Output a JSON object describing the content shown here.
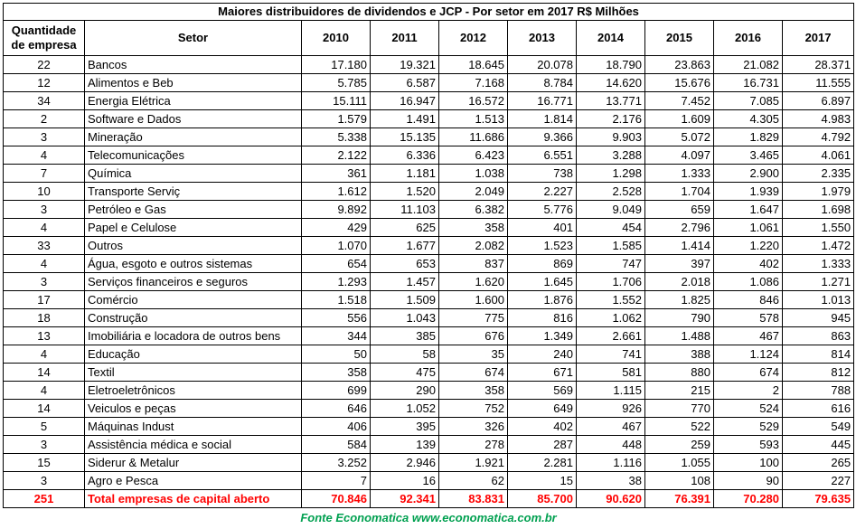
{
  "title": "Maiores distribuidores de dividendos e JCP - Por setor em 2017 R$ Milhões",
  "headers": {
    "qty": "Quantidade de empresa",
    "sector": "Setor",
    "years": [
      "2010",
      "2011",
      "2012",
      "2013",
      "2014",
      "2015",
      "2016",
      "2017"
    ]
  },
  "rows": [
    {
      "qty": "22",
      "sector": "Bancos",
      "values": [
        "17.180",
        "19.321",
        "18.645",
        "20.078",
        "18.790",
        "23.863",
        "21.082",
        "28.371"
      ]
    },
    {
      "qty": "12",
      "sector": "Alimentos e Beb",
      "values": [
        "5.785",
        "6.587",
        "7.168",
        "8.784",
        "14.620",
        "15.676",
        "16.731",
        "11.555"
      ]
    },
    {
      "qty": "34",
      "sector": "Energia Elétrica",
      "values": [
        "15.111",
        "16.947",
        "16.572",
        "16.771",
        "13.771",
        "7.452",
        "7.085",
        "6.897"
      ]
    },
    {
      "qty": "2",
      "sector": "Software e Dados",
      "values": [
        "1.579",
        "1.491",
        "1.513",
        "1.814",
        "2.176",
        "1.609",
        "4.305",
        "4.983"
      ]
    },
    {
      "qty": "3",
      "sector": "Mineração",
      "values": [
        "5.338",
        "15.135",
        "11.686",
        "9.366",
        "9.903",
        "5.072",
        "1.829",
        "4.792"
      ]
    },
    {
      "qty": "4",
      "sector": "Telecomunicações",
      "values": [
        "2.122",
        "6.336",
        "6.423",
        "6.551",
        "3.288",
        "4.097",
        "3.465",
        "4.061"
      ]
    },
    {
      "qty": "7",
      "sector": "Química",
      "values": [
        "361",
        "1.181",
        "1.038",
        "738",
        "1.298",
        "1.333",
        "2.900",
        "2.335"
      ]
    },
    {
      "qty": "10",
      "sector": "Transporte Serviç",
      "values": [
        "1.612",
        "1.520",
        "2.049",
        "2.227",
        "2.528",
        "1.704",
        "1.939",
        "1.979"
      ]
    },
    {
      "qty": "3",
      "sector": "Petróleo e Gas",
      "values": [
        "9.892",
        "11.103",
        "6.382",
        "5.776",
        "9.049",
        "659",
        "1.647",
        "1.698"
      ]
    },
    {
      "qty": "4",
      "sector": "Papel e Celulose",
      "values": [
        "429",
        "625",
        "358",
        "401",
        "454",
        "2.796",
        "1.061",
        "1.550"
      ]
    },
    {
      "qty": "33",
      "sector": "Outros",
      "values": [
        "1.070",
        "1.677",
        "2.082",
        "1.523",
        "1.585",
        "1.414",
        "1.220",
        "1.472"
      ]
    },
    {
      "qty": "4",
      "sector": "Água, esgoto e outros sistemas",
      "values": [
        "654",
        "653",
        "837",
        "869",
        "747",
        "397",
        "402",
        "1.333"
      ]
    },
    {
      "qty": "3",
      "sector": "Serviços financeiros e seguros",
      "values": [
        "1.293",
        "1.457",
        "1.620",
        "1.645",
        "1.706",
        "2.018",
        "1.086",
        "1.271"
      ]
    },
    {
      "qty": "17",
      "sector": "Comércio",
      "values": [
        "1.518",
        "1.509",
        "1.600",
        "1.876",
        "1.552",
        "1.825",
        "846",
        "1.013"
      ]
    },
    {
      "qty": "18",
      "sector": "Construção",
      "values": [
        "556",
        "1.043",
        "775",
        "816",
        "1.062",
        "790",
        "578",
        "945"
      ]
    },
    {
      "qty": "13",
      "sector": "Imobiliária e locadora de outros bens",
      "values": [
        "344",
        "385",
        "676",
        "1.349",
        "2.661",
        "1.488",
        "467",
        "863"
      ]
    },
    {
      "qty": "4",
      "sector": "Educação",
      "values": [
        "50",
        "58",
        "35",
        "240",
        "741",
        "388",
        "1.124",
        "814"
      ]
    },
    {
      "qty": "14",
      "sector": "Textil",
      "values": [
        "358",
        "475",
        "674",
        "671",
        "581",
        "880",
        "674",
        "812"
      ]
    },
    {
      "qty": "4",
      "sector": "Eletroeletrônicos",
      "values": [
        "699",
        "290",
        "358",
        "569",
        "1.115",
        "215",
        "2",
        "788"
      ]
    },
    {
      "qty": "14",
      "sector": "Veiculos e peças",
      "values": [
        "646",
        "1.052",
        "752",
        "649",
        "926",
        "770",
        "524",
        "616"
      ]
    },
    {
      "qty": "5",
      "sector": "Máquinas Indust",
      "values": [
        "406",
        "395",
        "326",
        "402",
        "467",
        "522",
        "529",
        "549"
      ]
    },
    {
      "qty": "3",
      "sector": "Assistência médica e social",
      "values": [
        "584",
        "139",
        "278",
        "287",
        "448",
        "259",
        "593",
        "445"
      ]
    },
    {
      "qty": "15",
      "sector": "Siderur & Metalur",
      "values": [
        "3.252",
        "2.946",
        "1.921",
        "2.281",
        "1.116",
        "1.055",
        "100",
        "265"
      ]
    },
    {
      "qty": "3",
      "sector": "Agro e Pesca",
      "values": [
        "7",
        "16",
        "62",
        "15",
        "38",
        "108",
        "90",
        "227"
      ]
    }
  ],
  "total": {
    "qty": "251",
    "sector": "Total empresas de capital aberto",
    "values": [
      "70.846",
      "92.341",
      "83.831",
      "85.700",
      "90.620",
      "76.391",
      "70.280",
      "79.635"
    ]
  },
  "source": "Fonte Economatica www.economatica.com.br",
  "colors": {
    "total": "#ff0000",
    "source": "#00a050"
  }
}
